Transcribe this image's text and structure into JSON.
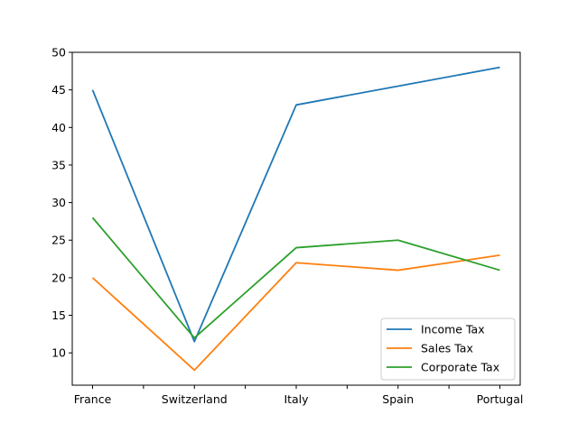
{
  "chart_data": {
    "type": "line",
    "categories": [
      "France",
      "Switzerland",
      "Italy",
      "Spain",
      "Portugal"
    ],
    "series": [
      {
        "name": "Income Tax",
        "values": [
          45,
          11.5,
          43,
          45.5,
          48
        ],
        "color": "#1f77b4"
      },
      {
        "name": "Sales Tax",
        "values": [
          20,
          7.7,
          22,
          21,
          23
        ],
        "color": "#ff7f0e"
      },
      {
        "name": "Corporate Tax",
        "values": [
          28,
          12,
          24,
          25,
          21
        ],
        "color": "#2ca02c"
      }
    ],
    "title": "",
    "xlabel": "",
    "ylabel": "",
    "ylim": [
      5.7,
      50
    ],
    "yticks": [
      10,
      15,
      20,
      25,
      30,
      35,
      40,
      45,
      50
    ],
    "grid": false,
    "legend": "lower-right"
  }
}
